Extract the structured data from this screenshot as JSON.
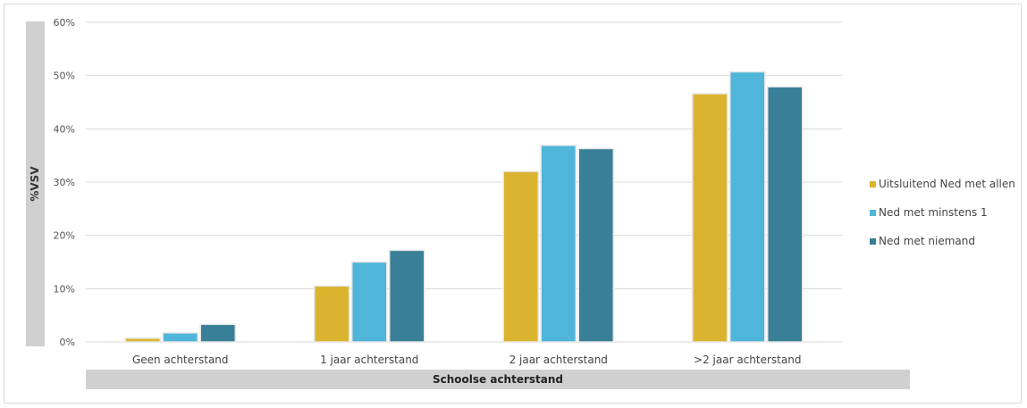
{
  "chart_data": {
    "type": "bar",
    "title": "",
    "xlabel": "Schoolse achterstand",
    "ylabel": "%VSV",
    "ylim": [
      0,
      60
    ],
    "yticks": [
      "0%",
      "10%",
      "20%",
      "30%",
      "40%",
      "50%",
      "60%"
    ],
    "grid": true,
    "legend_position": "right",
    "categories": [
      "Geen achterstand",
      "1 jaar achterstand",
      "2 jaar achterstand",
      ">2 jaar achterstand"
    ],
    "series": [
      {
        "name": "Uitsluitend Ned met allen",
        "color": "#dbb42f",
        "values": [
          0.7,
          10.5,
          32.0,
          46.6
        ]
      },
      {
        "name": "Ned met minstens 1",
        "color": "#4fb5d9",
        "values": [
          1.7,
          15.0,
          36.9,
          50.7
        ]
      },
      {
        "name": "Ned met niemand",
        "color": "#387f97",
        "values": [
          3.3,
          17.2,
          36.3,
          47.9
        ]
      }
    ]
  }
}
